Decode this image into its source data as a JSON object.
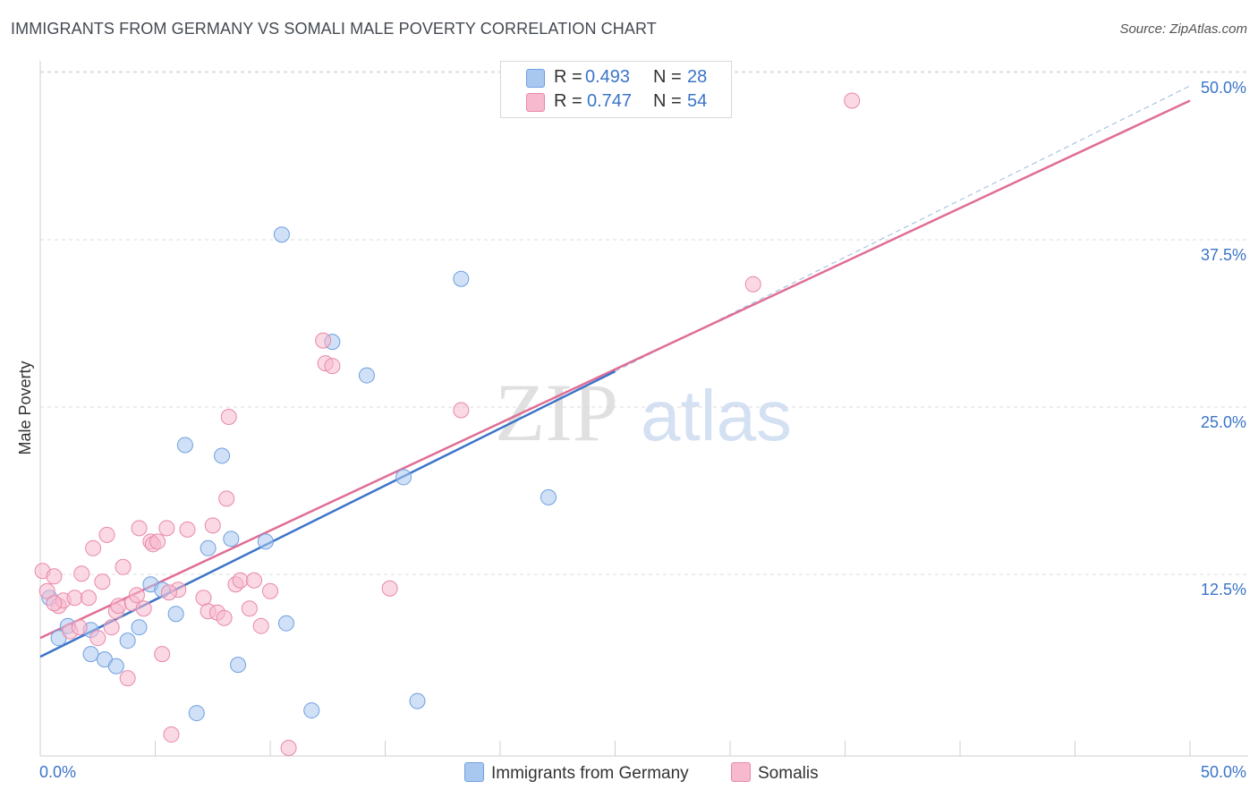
{
  "header": {
    "title": "IMMIGRANTS FROM GERMANY VS SOMALI MALE POVERTY CORRELATION CHART",
    "source": "Source: ZipAtlas.com"
  },
  "watermark": {
    "zip": "ZIP",
    "atlas": "atlas"
  },
  "legend": {
    "r_label": "R =",
    "n_label": "N =",
    "series": [
      {
        "name": "Immigrants from Germany",
        "r": "0.493",
        "n": "28",
        "color": "#a9c8f0",
        "stroke": "#6f9fe0"
      },
      {
        "name": "Somalis",
        "r": "0.747",
        "n": "54",
        "color": "#f7b9cd",
        "stroke": "#e888a8"
      }
    ]
  },
  "chart_data": {
    "type": "scatter",
    "title": "IMMIGRANTS FROM GERMANY VS SOMALI MALE POVERTY CORRELATION CHART",
    "xlabel": "",
    "ylabel": "Male Poverty",
    "xlim": [
      0,
      50
    ],
    "ylim": [
      0,
      50
    ],
    "x_tick_labels": [
      "0.0%",
      "50.0%"
    ],
    "y_ticks": [
      12.5,
      25.0,
      37.5,
      50.0
    ],
    "y_tick_labels": [
      "12.5%",
      "25.0%",
      "37.5%",
      "50.0%"
    ],
    "grid": true,
    "legend_position": "top-center",
    "series": [
      {
        "name": "Immigrants from Germany",
        "color": "#a9c8f0",
        "line_color": "#3b74c8",
        "trend": {
          "x": [
            0,
            25
          ],
          "y": [
            7.4,
            28.7
          ]
        },
        "trend_extension": {
          "x": [
            25,
            50
          ],
          "y": [
            28.7,
            50
          ]
        },
        "points": [
          [
            0.4,
            11.8
          ],
          [
            0.8,
            8.8
          ],
          [
            1.2,
            9.7
          ],
          [
            2.2,
            9.4
          ],
          [
            2.2,
            7.6
          ],
          [
            2.8,
            7.2
          ],
          [
            3.3,
            6.7
          ],
          [
            3.8,
            8.6
          ],
          [
            4.3,
            9.6
          ],
          [
            4.8,
            12.8
          ],
          [
            5.3,
            12.4
          ],
          [
            5.9,
            10.6
          ],
          [
            6.3,
            23.2
          ],
          [
            6.8,
            3.2
          ],
          [
            7.3,
            15.5
          ],
          [
            7.9,
            22.4
          ],
          [
            8.3,
            16.2
          ],
          [
            8.6,
            6.8
          ],
          [
            9.8,
            16.0
          ],
          [
            10.5,
            38.9
          ],
          [
            10.7,
            9.9
          ],
          [
            11.8,
            3.4
          ],
          [
            12.7,
            30.9
          ],
          [
            14.2,
            28.4
          ],
          [
            15.8,
            20.8
          ],
          [
            16.4,
            4.1
          ],
          [
            18.3,
            35.6
          ],
          [
            22.1,
            19.3
          ]
        ]
      },
      {
        "name": "Somalis",
        "color": "#f7b9cd",
        "line_color": "#e06d95",
        "trend": {
          "x": [
            0,
            50
          ],
          "y": [
            8.8,
            48.9
          ]
        },
        "points": [
          [
            0.1,
            13.8
          ],
          [
            0.3,
            12.3
          ],
          [
            0.6,
            13.4
          ],
          [
            0.8,
            11.2
          ],
          [
            1.0,
            11.6
          ],
          [
            1.3,
            9.3
          ],
          [
            1.5,
            11.8
          ],
          [
            1.7,
            9.6
          ],
          [
            1.8,
            13.6
          ],
          [
            2.1,
            11.8
          ],
          [
            2.3,
            15.5
          ],
          [
            2.5,
            8.8
          ],
          [
            2.7,
            13.0
          ],
          [
            2.9,
            16.5
          ],
          [
            3.1,
            9.6
          ],
          [
            3.3,
            10.8
          ],
          [
            3.4,
            11.2
          ],
          [
            3.6,
            14.1
          ],
          [
            3.8,
            5.8
          ],
          [
            4.0,
            11.4
          ],
          [
            4.2,
            12.0
          ],
          [
            4.3,
            17.0
          ],
          [
            4.5,
            11.0
          ],
          [
            4.8,
            16.0
          ],
          [
            4.9,
            15.8
          ],
          [
            5.1,
            16.0
          ],
          [
            5.3,
            7.6
          ],
          [
            5.5,
            17.0
          ],
          [
            5.7,
            1.6
          ],
          [
            6.0,
            12.4
          ],
          [
            6.4,
            16.9
          ],
          [
            7.1,
            11.8
          ],
          [
            7.3,
            10.8
          ],
          [
            7.5,
            17.2
          ],
          [
            7.7,
            10.7
          ],
          [
            8.0,
            10.3
          ],
          [
            8.1,
            19.2
          ],
          [
            8.2,
            25.3
          ],
          [
            8.5,
            12.8
          ],
          [
            8.7,
            13.1
          ],
          [
            9.1,
            11.0
          ],
          [
            9.3,
            13.1
          ],
          [
            9.6,
            9.7
          ],
          [
            10.0,
            12.3
          ],
          [
            10.8,
            0.6
          ],
          [
            12.3,
            31.0
          ],
          [
            12.4,
            29.3
          ],
          [
            12.7,
            29.1
          ],
          [
            15.2,
            12.5
          ],
          [
            18.3,
            25.8
          ],
          [
            31.0,
            35.2
          ],
          [
            35.3,
            48.9
          ],
          [
            0.6,
            11.4
          ],
          [
            5.6,
            12.2
          ]
        ]
      }
    ]
  }
}
